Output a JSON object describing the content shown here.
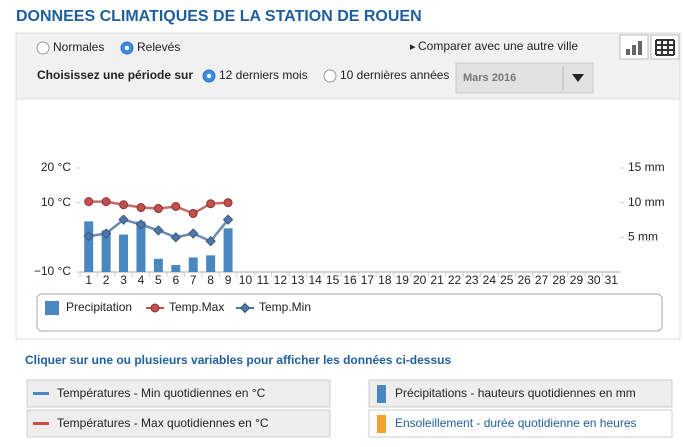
{
  "header": {
    "title": "DONNEES CLIMATIQUES DE LA STATION DE ROUEN"
  },
  "controls": {
    "mode_options": [
      "Normales",
      "Relevés"
    ],
    "mode_selected": 1,
    "compare": "Comparer avec une autre ville",
    "period_label": "Choisissez une période sur",
    "period_options": [
      "12 derniers mois",
      "10 dernières années"
    ],
    "period_selected": 0,
    "month_select": "Mars 2016"
  },
  "chart_data": {
    "type": "combo",
    "categories": [
      "1",
      "2",
      "3",
      "4",
      "5",
      "6",
      "7",
      "8",
      "9",
      "10",
      "11",
      "12",
      "13",
      "14",
      "15",
      "16",
      "17",
      "18",
      "19",
      "20",
      "21",
      "22",
      "23",
      "24",
      "25",
      "26",
      "27",
      "28",
      "29",
      "30",
      "31"
    ],
    "series": [
      {
        "name": "Precipitation",
        "type": "bar",
        "axis": "y2",
        "color": "#4a86c0",
        "values": [
          7.3,
          6,
          5.4,
          7.3,
          1.9,
          1,
          2.1,
          2.4,
          6.3,
          null,
          null,
          null,
          null,
          null,
          null,
          null,
          null,
          null,
          null,
          null,
          null,
          null,
          null,
          null,
          null,
          null,
          null,
          null,
          null,
          null,
          null
        ]
      },
      {
        "name": "Temp.Max",
        "type": "line",
        "marker": "circle",
        "color": "#c0504d",
        "values": [
          10.3,
          10.3,
          9.4,
          8.6,
          8.3,
          8.9,
          6.9,
          9.7,
          10,
          null,
          null,
          null,
          null,
          null,
          null,
          null,
          null,
          null,
          null,
          null,
          null,
          null,
          null,
          null,
          null,
          null,
          null,
          null,
          null,
          null,
          null
        ]
      },
      {
        "name": "Temp.Min",
        "type": "line",
        "marker": "diamond",
        "color": "#4f77a8",
        "values": [
          0.3,
          1.1,
          5.1,
          3.7,
          2,
          0,
          1.1,
          -1.1,
          5.1,
          null,
          null,
          null,
          null,
          null,
          null,
          null,
          null,
          null,
          null,
          null,
          null,
          null,
          null,
          null,
          null,
          null,
          null,
          null,
          null,
          null,
          null
        ]
      }
    ],
    "ylim": [
      -10,
      20
    ],
    "yticks": [
      {
        "value": 20,
        "label": "20 °C"
      },
      {
        "value": 10,
        "label": "10 °C"
      },
      {
        "value": -10,
        "label": "−10 °C"
      }
    ],
    "y2lim": [
      0,
      15
    ],
    "y2ticks": [
      {
        "value": 15,
        "label": "15 mm"
      },
      {
        "value": 10,
        "label": "10 mm"
      },
      {
        "value": 5,
        "label": "5 mm"
      }
    ],
    "legend": "bottom"
  },
  "variables": {
    "prompt": "Cliquer sur une ou plusieurs variables pour afficher les données ci-dessus",
    "buttons": [
      "Températures - Min quotidiennes en °C",
      "Précipitations - hauteurs quotidiennes en mm",
      "Températures - Max quotidiennes en °C",
      "Ensoleillement - durée quotidienne en heures"
    ]
  }
}
